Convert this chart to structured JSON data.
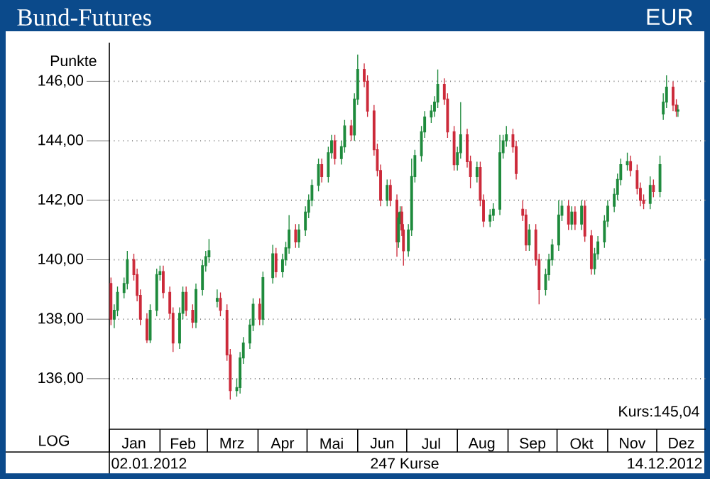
{
  "chart_data": {
    "type": "candlestick",
    "title": "Bund-Futures",
    "subtitle": "EUR",
    "ylabel": "Punkte",
    "colors": [
      "#cc2a3a",
      "#1e8a3c",
      "#1e8a3c",
      "#1e8a3c",
      "#1e8a3c",
      "#cc2a3a",
      "#cc2a3a",
      "#cc2a3a",
      "#cc2a3a",
      "#1e8a3c",
      "#1e8a3c",
      "#1e8a3c",
      "#cc2a3a",
      "#cc2a3a",
      "#cc2a3a",
      "#1e8a3c",
      "#1e8a3c",
      "#cc2a3a",
      "#cc2a3a",
      "#1e8a3c",
      "#1e8a3c",
      "#1e8a3c",
      "#1e8a3c",
      "#1e8a3c",
      "#cc2a3a",
      "#cc2a3a",
      "#cc2a3a",
      "#1e8a3c",
      "#1e8a3c",
      "#1e8a3c",
      "#1e8a3c",
      "#1e8a3c",
      "#cc2a3a",
      "#1e8a3c",
      "#1e8a3c",
      "#cc2a3a",
      "#1e8a3c",
      "#1e8a3c",
      "#1e8a3c",
      "#cc2a3a",
      "#1e8a3c",
      "#1e8a3c",
      "#1e8a3c",
      "#1e8a3c",
      "#1e8a3c",
      "#cc2a3a",
      "#1e8a3c",
      "#1e8a3c",
      "#cc2a3a",
      "#1e8a3c",
      "#1e8a3c",
      "#cc2a3a",
      "#1e8a3c",
      "#1e8a3c",
      "#cc2a3a",
      "#cc2a3a",
      "#cc2a3a",
      "#cc2a3a",
      "#cc2a3a",
      "#1e8a3c",
      "#cc2a3a",
      "#cc2a3a",
      "#1e8a3c",
      "#1e8a3c",
      "#cc2a3a",
      "#cc2a3a",
      "#1e8a3c",
      "#1e8a3c",
      "#1e8a3c",
      "#1e8a3c",
      "#1e8a3c",
      "#1e8a3c",
      "#1e8a3c",
      "#1e8a3c",
      "#cc2a3a",
      "#cc2a3a",
      "#cc2a3a",
      "#1e8a3c",
      "#1e8a3c",
      "#cc2a3a",
      "#cc2a3a",
      "#1e8a3c",
      "#cc2a3a",
      "#cc2a3a",
      "#1e8a3c",
      "#1e8a3c",
      "#1e8a3c",
      "#1e8a3c",
      "#1e8a3c",
      "#cc2a3a",
      "#cc2a3a",
      "#cc2a3a",
      "#cc2a3a",
      "#1e8a3c",
      "#cc2a3a",
      "#cc2a3a",
      "#1e8a3c",
      "#1e8a3c",
      "#1e8a3c",
      "#1e8a3c",
      "#1e8a3c",
      "#cc2a3a",
      "#1e8a3c",
      "#cc2a3a",
      "#1e8a3c",
      "#cc2a3a",
      "#cc2a3a",
      "#1e8a3c",
      "#1e8a3c",
      "#1e8a3c",
      "#1e8a3c",
      "#1e8a3c",
      "#1e8a3c",
      "#1e8a3c",
      "#1e8a3c",
      "#cc2a3a",
      "#cc2a3a",
      "#cc2a3a",
      "#cc2a3a",
      "#1e8a3c",
      "#cc2a3a",
      "#1e8a3c",
      "#1e8a3c",
      "#1e8a3c",
      "#cc2a3a",
      "#cc2a3a",
      "#1e8a3c"
    ],
    "grid": "y",
    "xlim": [
      "2012-01-01",
      "2012-12-31"
    ],
    "xticks": [
      {
        "value": "2012-01-01",
        "label": null
      },
      {
        "value": "2012-01-16",
        "label": "Jan"
      },
      {
        "value": "2012-02-01",
        "label": null
      },
      {
        "value": "2012-02-15",
        "label": "Feb"
      },
      {
        "value": "2012-03-01",
        "label": null
      },
      {
        "value": "2012-03-16",
        "label": "Mrz"
      },
      {
        "value": "2012-04-01",
        "label": null
      },
      {
        "value": "2012-04-16",
        "label": "Apr"
      },
      {
        "value": "2012-05-01",
        "label": null
      },
      {
        "value": "2012-05-16",
        "label": "Mai"
      },
      {
        "value": "2012-06-01",
        "label": null
      },
      {
        "value": "2012-06-16",
        "label": "Jun"
      },
      {
        "value": "2012-07-01",
        "label": null
      },
      {
        "value": "2012-07-16",
        "label": "Jul"
      },
      {
        "value": "2012-08-01",
        "label": null
      },
      {
        "value": "2012-08-16",
        "label": "Aug"
      },
      {
        "value": "2012-09-01",
        "label": null
      },
      {
        "value": "2012-09-16",
        "label": "Sep"
      },
      {
        "value": "2012-10-01",
        "label": null
      },
      {
        "value": "2012-10-16",
        "label": "Okt"
      },
      {
        "value": "2012-11-01",
        "label": null
      },
      {
        "value": "2012-11-16",
        "label": "Nov"
      },
      {
        "value": "2012-12-01",
        "label": null
      },
      {
        "value": "2012-12-16",
        "label": "Dez"
      }
    ],
    "ylim": [
      134.3,
      147.3
    ],
    "yticks": [
      {
        "value": 136,
        "label": "136,00"
      },
      {
        "value": 138,
        "label": "138,00"
      },
      {
        "value": 140,
        "label": "140,00"
      },
      {
        "value": 142,
        "label": "142,00"
      },
      {
        "value": 144,
        "label": "144,00"
      },
      {
        "value": 146,
        "label": "146,00"
      }
    ],
    "annotations": [
      "LOG",
      "02.01.2012",
      "247 Kurse",
      "14.12.2012",
      "Kurs:145,04"
    ],
    "x": [
      "2012-01-02",
      "2012-01-04",
      "2012-01-06",
      "2012-01-10",
      "2012-01-12",
      "2012-01-16",
      "2012-01-18",
      "2012-01-20",
      "2012-01-24",
      "2012-01-26",
      "2012-01-30",
      "2012-02-01",
      "2012-02-03",
      "2012-02-07",
      "2012-02-09",
      "2012-02-13",
      "2012-02-15",
      "2012-02-17",
      "2012-02-21",
      "2012-02-23",
      "2012-02-27",
      "2012-02-29",
      "2012-03-02",
      "2012-03-07",
      "2012-03-09",
      "2012-03-13",
      "2012-03-15",
      "2012-03-19",
      "2012-03-21",
      "2012-03-23",
      "2012-03-27",
      "2012-03-29",
      "2012-04-02",
      "2012-04-04",
      "2012-04-10",
      "2012-04-12",
      "2012-04-16",
      "2012-04-18",
      "2012-04-20",
      "2012-04-24",
      "2012-04-26",
      "2012-04-30",
      "2012-05-02",
      "2012-05-04",
      "2012-05-08",
      "2012-05-10",
      "2012-05-14",
      "2012-05-16",
      "2012-05-18",
      "2012-05-22",
      "2012-05-24",
      "2012-05-28",
      "2012-05-30",
      "2012-06-01",
      "2012-06-05",
      "2012-06-07",
      "2012-06-11",
      "2012-06-13",
      "2012-06-15",
      "2012-06-19",
      "2012-06-21",
      "2012-06-25",
      "2012-06-26",
      "2012-06-27",
      "2012-06-28",
      "2012-06-29",
      "2012-07-02",
      "2012-07-04",
      "2012-07-06",
      "2012-07-10",
      "2012-07-12",
      "2012-07-16",
      "2012-07-18",
      "2012-07-20",
      "2012-07-24",
      "2012-07-26",
      "2012-07-30",
      "2012-08-01",
      "2012-08-03",
      "2012-08-07",
      "2012-08-09",
      "2012-08-13",
      "2012-08-15",
      "2012-08-17",
      "2012-08-21",
      "2012-08-23",
      "2012-08-27",
      "2012-08-29",
      "2012-08-31",
      "2012-09-04",
      "2012-09-06",
      "2012-09-10",
      "2012-09-12",
      "2012-09-14",
      "2012-09-18",
      "2012-09-20",
      "2012-09-24",
      "2012-09-26",
      "2012-09-28",
      "2012-10-02",
      "2012-10-04",
      "2012-10-08",
      "2012-10-10",
      "2012-10-12",
      "2012-10-16",
      "2012-10-18",
      "2012-10-22",
      "2012-10-24",
      "2012-10-26",
      "2012-10-30",
      "2012-11-01",
      "2012-11-05",
      "2012-11-07",
      "2012-11-09",
      "2012-11-13",
      "2012-11-15",
      "2012-11-19",
      "2012-11-21",
      "2012-11-23",
      "2012-11-27",
      "2012-11-29",
      "2012-12-03",
      "2012-12-05",
      "2012-12-07",
      "2012-12-11",
      "2012-12-13",
      "2012-12-14"
    ],
    "ohlc": [
      [
        139.2,
        139.4,
        137.8,
        138.0
      ],
      [
        138.0,
        138.5,
        137.7,
        138.3
      ],
      [
        138.3,
        139.1,
        138.1,
        138.9
      ],
      [
        138.9,
        139.4,
        138.7,
        139.2
      ],
      [
        139.2,
        140.3,
        139.0,
        140.0
      ],
      [
        140.0,
        140.2,
        139.3,
        139.5
      ],
      [
        139.5,
        139.7,
        138.6,
        138.8
      ],
      [
        138.8,
        139.0,
        137.8,
        138.0
      ],
      [
        138.0,
        138.2,
        137.2,
        137.3
      ],
      [
        137.3,
        138.5,
        137.2,
        138.3
      ],
      [
        138.3,
        139.7,
        138.1,
        139.5
      ],
      [
        139.5,
        139.8,
        139.3,
        139.6
      ],
      [
        139.6,
        139.8,
        138.7,
        138.9
      ],
      [
        138.9,
        139.1,
        138.0,
        138.2
      ],
      [
        138.2,
        138.4,
        136.9,
        137.2
      ],
      [
        137.2,
        138.4,
        137.0,
        138.2
      ],
      [
        138.2,
        139.1,
        138.0,
        138.9
      ],
      [
        138.9,
        139.1,
        138.1,
        138.3
      ],
      [
        138.3,
        138.5,
        137.7,
        137.9
      ],
      [
        137.9,
        139.2,
        137.7,
        139.0
      ],
      [
        139.0,
        140.0,
        138.8,
        139.8
      ],
      [
        139.8,
        140.3,
        139.6,
        140.1
      ],
      [
        140.1,
        140.7,
        139.9,
        140.3
      ],
      [
        138.6,
        139.0,
        138.4,
        138.7
      ],
      [
        138.7,
        138.9,
        138.1,
        138.3
      ],
      [
        138.3,
        138.5,
        136.6,
        136.8
      ],
      [
        136.8,
        137.0,
        135.3,
        135.6
      ],
      [
        135.6,
        136.0,
        135.4,
        135.7
      ],
      [
        135.7,
        136.9,
        135.5,
        136.7
      ],
      [
        136.7,
        137.4,
        136.5,
        137.2
      ],
      [
        137.2,
        138.0,
        137.0,
        137.8
      ],
      [
        137.8,
        138.7,
        137.6,
        138.5
      ],
      [
        138.5,
        138.7,
        137.8,
        138.0
      ],
      [
        138.0,
        139.6,
        137.8,
        139.4
      ],
      [
        139.4,
        140.5,
        139.2,
        140.2
      ],
      [
        140.2,
        140.4,
        139.4,
        139.6
      ],
      [
        139.6,
        140.2,
        139.4,
        140.0
      ],
      [
        140.0,
        140.6,
        139.8,
        140.4
      ],
      [
        140.4,
        141.5,
        140.2,
        141.0
      ],
      [
        141.0,
        141.2,
        140.4,
        140.6
      ],
      [
        140.6,
        141.2,
        140.4,
        141.0
      ],
      [
        141.0,
        141.8,
        140.8,
        141.6
      ],
      [
        141.6,
        142.2,
        141.4,
        142.0
      ],
      [
        142.0,
        142.7,
        141.8,
        142.5
      ],
      [
        142.5,
        143.4,
        142.3,
        143.2
      ],
      [
        143.2,
        143.4,
        142.6,
        142.8
      ],
      [
        142.8,
        143.8,
        142.6,
        143.6
      ],
      [
        143.6,
        144.2,
        143.4,
        144.0
      ],
      [
        144.0,
        144.2,
        143.2,
        143.4
      ],
      [
        143.4,
        144.0,
        143.2,
        143.8
      ],
      [
        143.8,
        144.7,
        143.6,
        144.5
      ],
      [
        144.5,
        144.7,
        144.0,
        144.2
      ],
      [
        144.2,
        145.6,
        144.0,
        145.4
      ],
      [
        145.4,
        146.9,
        145.2,
        146.4
      ],
      [
        146.4,
        146.6,
        145.8,
        146.0
      ],
      [
        146.0,
        146.2,
        144.8,
        145.0
      ],
      [
        145.0,
        145.2,
        143.5,
        143.7
      ],
      [
        143.7,
        143.9,
        142.8,
        143.0
      ],
      [
        143.0,
        143.2,
        141.8,
        142.0
      ],
      [
        142.0,
        142.7,
        141.8,
        142.5
      ],
      [
        142.5,
        142.7,
        141.8,
        142.0
      ],
      [
        142.0,
        142.2,
        140.1,
        140.6
      ],
      [
        140.6,
        141.6,
        140.4,
        141.4
      ],
      [
        141.4,
        141.8,
        141.2,
        141.6
      ],
      [
        141.6,
        141.8,
        140.8,
        141.0
      ],
      [
        141.0,
        141.2,
        139.8,
        140.3
      ],
      [
        140.3,
        141.2,
        140.1,
        141.0
      ],
      [
        141.0,
        143.4,
        140.8,
        142.8
      ],
      [
        142.8,
        143.7,
        142.6,
        143.5
      ],
      [
        143.5,
        144.5,
        143.3,
        144.3
      ],
      [
        144.3,
        145.0,
        144.1,
        144.8
      ],
      [
        144.8,
        145.2,
        144.6,
        145.0
      ],
      [
        145.0,
        145.5,
        144.8,
        145.3
      ],
      [
        145.3,
        146.4,
        145.1,
        145.9
      ],
      [
        145.9,
        146.1,
        145.2,
        145.4
      ],
      [
        145.4,
        145.6,
        144.1,
        144.3
      ],
      [
        144.3,
        144.5,
        143.0,
        143.2
      ],
      [
        143.2,
        143.8,
        143.0,
        143.6
      ],
      [
        143.6,
        145.3,
        143.4,
        144.2
      ],
      [
        144.2,
        144.4,
        143.1,
        143.3
      ],
      [
        143.3,
        143.5,
        142.4,
        142.8
      ],
      [
        142.8,
        143.3,
        142.6,
        143.1
      ],
      [
        143.1,
        143.3,
        141.8,
        142.0
      ],
      [
        142.0,
        142.2,
        141.1,
        141.3
      ],
      [
        141.3,
        141.7,
        141.1,
        141.5
      ],
      [
        141.5,
        141.9,
        141.3,
        141.7
      ],
      [
        141.7,
        144.2,
        141.5,
        143.6
      ],
      [
        143.6,
        144.2,
        143.4,
        144.0
      ],
      [
        144.0,
        144.5,
        143.8,
        144.2
      ],
      [
        144.2,
        144.4,
        143.6,
        143.8
      ],
      [
        143.8,
        144.0,
        142.7,
        142.9
      ],
      [
        141.7,
        142.0,
        141.3,
        141.5
      ],
      [
        141.5,
        141.7,
        140.3,
        140.5
      ],
      [
        140.5,
        141.2,
        140.3,
        141.0
      ],
      [
        141.0,
        141.2,
        139.8,
        140.0
      ],
      [
        140.0,
        140.2,
        138.5,
        139.0
      ],
      [
        139.0,
        139.7,
        138.8,
        139.5
      ],
      [
        139.5,
        140.2,
        139.3,
        140.0
      ],
      [
        140.0,
        140.7,
        139.8,
        140.5
      ],
      [
        140.5,
        142.0,
        140.3,
        141.5
      ],
      [
        141.5,
        142.0,
        141.3,
        141.8
      ],
      [
        141.8,
        142.0,
        141.0,
        141.2
      ],
      [
        141.2,
        141.8,
        141.0,
        141.6
      ],
      [
        141.6,
        141.8,
        141.0,
        141.2
      ],
      [
        141.2,
        142.0,
        141.0,
        141.8
      ],
      [
        141.8,
        142.0,
        140.6,
        140.8
      ],
      [
        140.8,
        141.0,
        139.5,
        139.7
      ],
      [
        139.7,
        140.4,
        139.5,
        140.2
      ],
      [
        140.2,
        140.8,
        140.0,
        140.6
      ],
      [
        140.6,
        141.5,
        140.4,
        141.3
      ],
      [
        141.3,
        142.0,
        141.1,
        141.8
      ],
      [
        141.8,
        142.4,
        141.6,
        142.2
      ],
      [
        142.2,
        142.9,
        142.0,
        142.7
      ],
      [
        142.7,
        143.4,
        142.5,
        143.2
      ],
      [
        143.2,
        143.6,
        143.0,
        143.3
      ],
      [
        143.3,
        143.5,
        142.8,
        143.0
      ],
      [
        143.0,
        143.2,
        142.2,
        142.4
      ],
      [
        142.4,
        142.6,
        141.8,
        142.0
      ],
      [
        142.0,
        142.2,
        141.7,
        141.9
      ],
      [
        141.9,
        142.8,
        141.7,
        142.5
      ],
      [
        142.5,
        142.7,
        142.1,
        142.3
      ],
      [
        142.3,
        143.5,
        142.1,
        143.2
      ],
      [
        144.9,
        145.6,
        144.7,
        145.3
      ],
      [
        145.3,
        146.2,
        145.1,
        145.8
      ],
      [
        145.8,
        146.0,
        145.0,
        145.2
      ],
      [
        145.2,
        145.4,
        144.8,
        145.0
      ],
      [
        145.0,
        145.2,
        144.8,
        145.04
      ]
    ]
  }
}
